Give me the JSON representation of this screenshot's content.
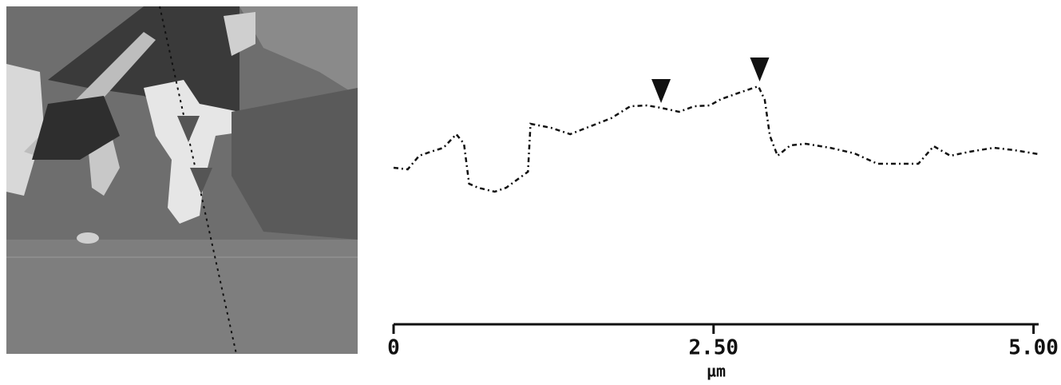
{
  "chart_data": {
    "type": "line",
    "x_label": "µm",
    "x": [
      0,
      0.11,
      0.2,
      0.29,
      0.39,
      0.49,
      0.55,
      0.59,
      0.66,
      0.79,
      0.88,
      1.05,
      1.07,
      1.23,
      1.38,
      1.54,
      1.7,
      1.85,
      1.98,
      2.09,
      2.23,
      2.35,
      2.47,
      2.56,
      2.72,
      2.85,
      2.9,
      2.94,
      3.0,
      3.1,
      3.22,
      3.41,
      3.6,
      3.78,
      3.97,
      4.1,
      4.22,
      4.35,
      4.5,
      4.69,
      4.85,
      5.04
    ],
    "series": [
      {
        "color": "#111111",
        "values": [
          196,
          194,
          211,
          216,
          221,
          238,
          226,
          176,
          171,
          166,
          171,
          191,
          251,
          246,
          238,
          248,
          258,
          273,
          274,
          271,
          266,
          273,
          274,
          282,
          291,
          298,
          281,
          236,
          211,
          224,
          226,
          221,
          214,
          201,
          201,
          201,
          223,
          211,
          216,
          221,
          218,
          213
        ]
      }
    ],
    "cursors": [
      2.09,
      2.86
    ],
    "xlim": [
      0,
      5.04
    ],
    "ylim": [
      0,
      350
    ],
    "xticks": [
      0,
      {
        "value": 2.5,
        "label": "2.50"
      },
      {
        "value": 5,
        "label": "5.00"
      }
    ]
  }
}
